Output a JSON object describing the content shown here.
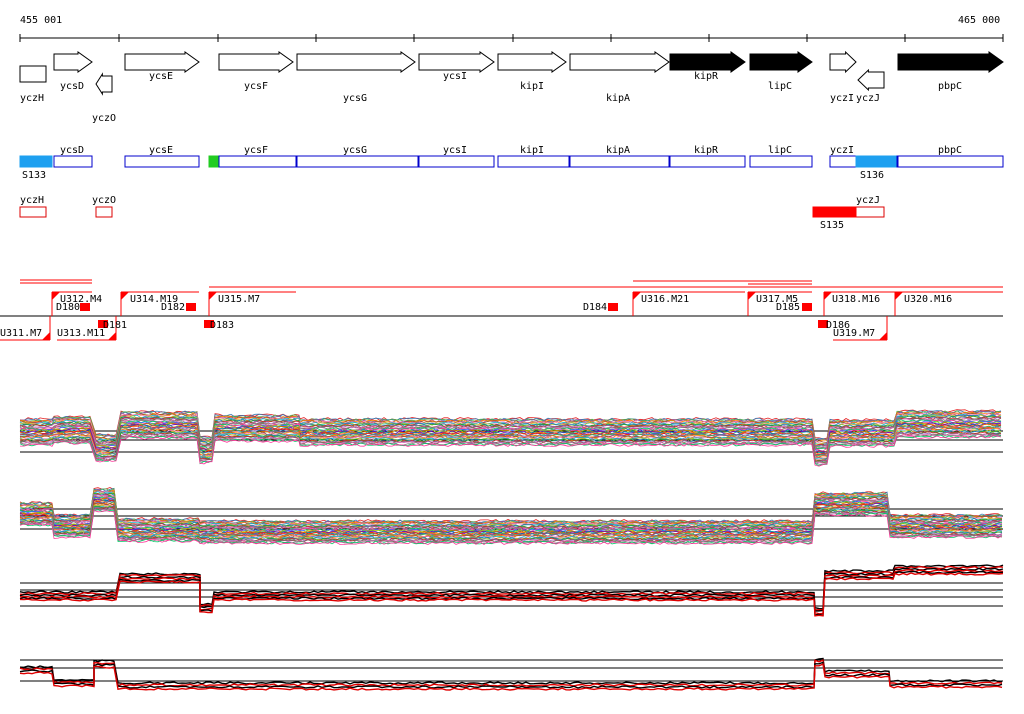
{
  "coordinates": {
    "start_label": "455 001",
    "end_label": "465 000"
  },
  "genes": [
    {
      "label": "yczH",
      "strand": "-",
      "filled": false
    },
    {
      "label": "ycsD",
      "strand": "+",
      "filled": false
    },
    {
      "label": "yczO",
      "strand": "-",
      "filled": false
    },
    {
      "label": "ycsE",
      "strand": "+",
      "filled": false
    },
    {
      "label": "ycsF",
      "strand": "+",
      "filled": false
    },
    {
      "label": "ycsG",
      "strand": "+",
      "filled": false
    },
    {
      "label": "ycsI",
      "strand": "+",
      "filled": false
    },
    {
      "label": "kipI",
      "strand": "+",
      "filled": false
    },
    {
      "label": "kipA",
      "strand": "+",
      "filled": false
    },
    {
      "label": "kipR",
      "strand": "+",
      "filled": true
    },
    {
      "label": "lipC",
      "strand": "+",
      "filled": true
    },
    {
      "label": "yczI",
      "strand": "+",
      "filled": false
    },
    {
      "label": "yczJ",
      "strand": "-",
      "filled": false
    },
    {
      "label": "pbpC",
      "strand": "+",
      "filled": true
    }
  ],
  "plus_track": {
    "genes": [
      "ycsD",
      "ycsE",
      "ycsF",
      "ycsG",
      "ycsI",
      "kipI",
      "kipA",
      "kipR",
      "lipC",
      "yczI",
      "pbpC"
    ],
    "features": [
      "S133",
      "S136"
    ]
  },
  "minus_track": {
    "genes": [
      "yczH",
      "yczO",
      "yczJ"
    ],
    "features": [
      "S135"
    ]
  },
  "upstream_signals": [
    "U311.M7",
    "U312.M4",
    "U313.M11",
    "U314.M19",
    "U315.M7",
    "U316.M21",
    "U317.M5",
    "U318.M16",
    "U319.M7",
    "U320.M16"
  ],
  "downstream_signals": [
    "D180",
    "D181",
    "D182",
    "D183",
    "D184",
    "D185",
    "D186"
  ],
  "colors": {
    "gene_outline": "#0000cc",
    "feature_blue": "#1ea0f0",
    "feature_green": "#22cc22",
    "minus_outline": "#dd0000",
    "signal_red": "#ff0000",
    "axis": "#000000"
  },
  "expression_panels": [
    {
      "name": "plus-strand-profiles",
      "colored_lines": true
    },
    {
      "name": "minus-strand-profiles",
      "colored_lines": true
    },
    {
      "name": "plus-strand-summary",
      "colored_lines": false
    },
    {
      "name": "minus-strand-summary",
      "colored_lines": false
    }
  ]
}
